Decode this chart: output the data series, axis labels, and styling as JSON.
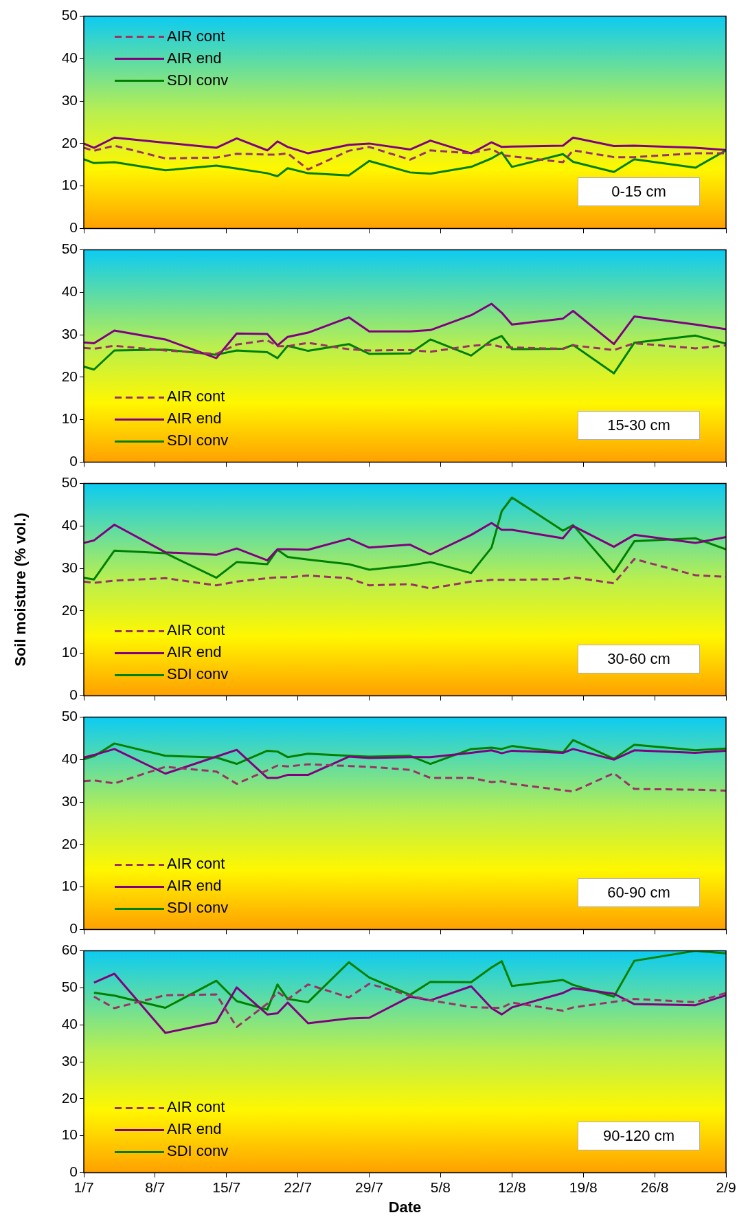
{
  "chart_data": [
    {
      "type": "line",
      "x": [
        "--07-01",
        "--07-02",
        "--07-04",
        "--07-09",
        "--07-14",
        "--07-16",
        "--07-19",
        "--07-20",
        "--07-21",
        "--07-23",
        "--07-27",
        "--07-29",
        "--08-02",
        "--08-04",
        "--08-08",
        "--08-10",
        "--08-11",
        "--08-12",
        "--08-17",
        "--08-18",
        "--08-22",
        "--08-24",
        "--08-30",
        "--09-02"
      ],
      "series": [
        {
          "name": "AIR cont",
          "color": "#993366",
          "line_style": "dashed",
          "values": [
            19.0,
            18.3,
            19.5,
            16.5,
            16.7,
            17.6,
            17.4,
            17.4,
            17.7,
            13.9,
            18.3,
            19.2,
            16.2,
            18.4,
            17.7,
            18.8,
            17.3,
            17.0,
            15.6,
            18.4,
            16.8,
            16.8,
            17.7,
            17.7
          ]
        },
        {
          "name": "AIR end",
          "color": "#800080",
          "line_style": "solid",
          "values": [
            20.0,
            19.0,
            21.4,
            20.2,
            19.0,
            21.2,
            18.4,
            20.5,
            19.2,
            17.7,
            19.7,
            20.0,
            18.6,
            20.7,
            17.7,
            20.3,
            19.2,
            19.3,
            19.5,
            21.4,
            19.4,
            19.5,
            19.0,
            18.5
          ]
        },
        {
          "name": "SDI conv",
          "color": "#008000",
          "line_style": "solid",
          "values": [
            16.3,
            15.4,
            15.6,
            13.7,
            14.8,
            14.1,
            13.0,
            12.3,
            14.2,
            13.0,
            12.5,
            15.9,
            13.2,
            12.9,
            14.5,
            16.5,
            17.9,
            14.5,
            17.5,
            15.7,
            13.3,
            16.3,
            14.3,
            18.4
          ]
        }
      ],
      "xlim": [
        "--07-01",
        "--09-02"
      ],
      "xticks": [
        {
          "value": "--07-01",
          "label": null
        },
        {
          "value": "--07-08",
          "label": null
        },
        {
          "value": "--07-15",
          "label": null
        },
        {
          "value": "--07-22",
          "label": null
        },
        {
          "value": "--07-29",
          "label": null
        },
        {
          "value": "--08-05",
          "label": null
        },
        {
          "value": "--08-12",
          "label": null
        },
        {
          "value": "--08-19",
          "label": null
        },
        {
          "value": "--08-26",
          "label": null
        },
        {
          "value": "--09-02",
          "label": null
        }
      ],
      "ylim": [
        0,
        50
      ],
      "yticks": [
        0,
        10,
        20,
        30,
        40,
        50
      ],
      "tick_labels": "y",
      "legend": "top left",
      "annotations": [
        "0-15 cm"
      ]
    },
    {
      "type": "line",
      "x": [
        "--07-01",
        "--07-02",
        "--07-04",
        "--07-09",
        "--07-14",
        "--07-16",
        "--07-19",
        "--07-20",
        "--07-21",
        "--07-23",
        "--07-27",
        "--07-29",
        "--08-02",
        "--08-04",
        "--08-08",
        "--08-10",
        "--08-11",
        "--08-12",
        "--08-17",
        "--08-18",
        "--08-22",
        "--08-24",
        "--08-30",
        "--09-02"
      ],
      "series": [
        {
          "name": "AIR cont",
          "color": "#993366",
          "line_style": "dashed",
          "values": [
            26.9,
            26.7,
            27.4,
            26.3,
            25.5,
            27.7,
            28.7,
            27.3,
            27.3,
            28.1,
            26.6,
            26.3,
            26.4,
            26.0,
            27.4,
            27.7,
            27.1,
            27.0,
            26.7,
            27.5,
            26.4,
            28.0,
            26.8,
            27.5
          ]
        },
        {
          "name": "AIR end",
          "color": "#800080",
          "line_style": "solid",
          "values": [
            28.2,
            28.0,
            31.0,
            28.9,
            24.5,
            30.3,
            30.2,
            27.5,
            29.5,
            30.5,
            34.1,
            30.8,
            30.8,
            31.1,
            34.6,
            37.3,
            35.2,
            32.4,
            33.8,
            35.6,
            27.8,
            34.3,
            32.4,
            31.3
          ]
        },
        {
          "name": "SDI conv",
          "color": "#008000",
          "line_style": "solid",
          "values": [
            22.5,
            21.8,
            26.3,
            26.5,
            25.3,
            26.3,
            25.9,
            24.5,
            27.4,
            26.2,
            27.8,
            25.5,
            25.6,
            28.9,
            25.1,
            28.7,
            29.7,
            26.6,
            26.7,
            27.6,
            20.9,
            28.1,
            29.8,
            27.9
          ]
        }
      ],
      "xlim": [
        "--07-01",
        "--09-02"
      ],
      "xticks": [
        {
          "value": "--07-01",
          "label": null
        },
        {
          "value": "--07-08",
          "label": null
        },
        {
          "value": "--07-15",
          "label": null
        },
        {
          "value": "--07-22",
          "label": null
        },
        {
          "value": "--07-29",
          "label": null
        },
        {
          "value": "--08-05",
          "label": null
        },
        {
          "value": "--08-12",
          "label": null
        },
        {
          "value": "--08-19",
          "label": null
        },
        {
          "value": "--08-26",
          "label": null
        },
        {
          "value": "--09-02",
          "label": null
        }
      ],
      "ylim": [
        0,
        50
      ],
      "yticks": [
        0,
        10,
        20,
        30,
        40,
        50
      ],
      "tick_labels": "y",
      "legend": "bottom left",
      "annotations": [
        "15-30 cm"
      ]
    },
    {
      "type": "line",
      "x": [
        "--07-01",
        "--07-02",
        "--07-04",
        "--07-09",
        "--07-14",
        "--07-16",
        "--07-19",
        "--07-20",
        "--07-21",
        "--07-23",
        "--07-27",
        "--07-29",
        "--08-02",
        "--08-04",
        "--08-08",
        "--08-10",
        "--08-11",
        "--08-12",
        "--08-17",
        "--08-18",
        "--08-22",
        "--08-24",
        "--08-30",
        "--09-02"
      ],
      "series": [
        {
          "name": "AIR cont",
          "color": "#993366",
          "line_style": "dashed",
          "values": [
            26.9,
            26.6,
            27.1,
            27.7,
            26.0,
            26.9,
            27.7,
            27.9,
            27.9,
            28.3,
            27.7,
            26.0,
            26.3,
            25.3,
            26.9,
            27.3,
            27.3,
            27.3,
            27.5,
            27.9,
            26.5,
            32.2,
            28.4,
            28.0
          ]
        },
        {
          "name": "AIR end",
          "color": "#800080",
          "line_style": "solid",
          "values": [
            36.0,
            36.6,
            40.3,
            33.8,
            33.2,
            34.7,
            31.9,
            34.5,
            34.5,
            34.4,
            37.0,
            34.9,
            35.6,
            33.3,
            37.9,
            40.7,
            39.1,
            39.1,
            37.1,
            40.0,
            35.1,
            37.9,
            36.0,
            37.4
          ]
        },
        {
          "name": "SDI conv",
          "color": "#008000",
          "line_style": "solid",
          "values": [
            27.8,
            27.4,
            34.2,
            33.6,
            27.8,
            31.5,
            31.0,
            34.4,
            32.7,
            32.1,
            31.0,
            29.7,
            30.7,
            31.5,
            28.9,
            34.9,
            43.5,
            46.7,
            38.9,
            40.2,
            29.1,
            36.4,
            37.1,
            34.5
          ]
        }
      ],
      "xlim": [
        "--07-01",
        "--09-02"
      ],
      "xticks": [
        {
          "value": "--07-01",
          "label": null
        },
        {
          "value": "--07-08",
          "label": null
        },
        {
          "value": "--07-15",
          "label": null
        },
        {
          "value": "--07-22",
          "label": null
        },
        {
          "value": "--07-29",
          "label": null
        },
        {
          "value": "--08-05",
          "label": null
        },
        {
          "value": "--08-12",
          "label": null
        },
        {
          "value": "--08-19",
          "label": null
        },
        {
          "value": "--08-26",
          "label": null
        },
        {
          "value": "--09-02",
          "label": null
        }
      ],
      "ylim": [
        0,
        50
      ],
      "yticks": [
        0,
        10,
        20,
        30,
        40,
        50
      ],
      "ylabel": "Soil moisture (% vol.)",
      "tick_labels": "y",
      "legend": "bottom left",
      "annotations": [
        "30-60 cm"
      ]
    },
    {
      "type": "line",
      "x": [
        "--07-01",
        "--07-02",
        "--07-04",
        "--07-09",
        "--07-14",
        "--07-16",
        "--07-19",
        "--07-20",
        "--07-21",
        "--07-23",
        "--07-27",
        "--07-29",
        "--08-02",
        "--08-04",
        "--08-08",
        "--08-10",
        "--08-11",
        "--08-12",
        "--08-17",
        "--08-18",
        "--08-22",
        "--08-24",
        "--08-30",
        "--09-02"
      ],
      "series": [
        {
          "name": "AIR cont",
          "color": "#993366",
          "line_style": "dashed",
          "values": [
            34.9,
            35.1,
            34.4,
            38.3,
            37.2,
            34.3,
            37.5,
            38.6,
            38.4,
            38.9,
            38.5,
            38.3,
            37.6,
            35.7,
            35.7,
            34.7,
            34.9,
            34.3,
            32.8,
            32.5,
            36.8,
            33.1,
            32.9,
            32.7
          ]
        },
        {
          "name": "AIR end",
          "color": "#800080",
          "line_style": "solid",
          "values": [
            40.5,
            41.1,
            42.5,
            36.7,
            40.7,
            42.3,
            35.7,
            35.7,
            36.4,
            36.4,
            40.7,
            40.4,
            40.6,
            40.6,
            41.6,
            42.2,
            41.5,
            42.1,
            41.6,
            42.5,
            40.0,
            42.2,
            41.6,
            42.1
          ]
        },
        {
          "name": "SDI conv",
          "color": "#008000",
          "line_style": "solid",
          "values": [
            40.1,
            40.8,
            43.8,
            40.9,
            40.5,
            39.0,
            42.1,
            41.9,
            40.6,
            41.4,
            40.9,
            40.7,
            40.9,
            39.0,
            42.5,
            42.8,
            42.5,
            43.2,
            41.7,
            44.6,
            40.2,
            43.5,
            42.2,
            42.6
          ]
        }
      ],
      "xlim": [
        "--07-01",
        "--09-02"
      ],
      "xticks": [
        {
          "value": "--07-01",
          "label": null
        },
        {
          "value": "--07-08",
          "label": null
        },
        {
          "value": "--07-15",
          "label": null
        },
        {
          "value": "--07-22",
          "label": null
        },
        {
          "value": "--07-29",
          "label": null
        },
        {
          "value": "--08-05",
          "label": null
        },
        {
          "value": "--08-12",
          "label": null
        },
        {
          "value": "--08-19",
          "label": null
        },
        {
          "value": "--08-26",
          "label": null
        },
        {
          "value": "--09-02",
          "label": null
        }
      ],
      "ylim": [
        0,
        50
      ],
      "yticks": [
        0,
        10,
        20,
        30,
        40,
        50
      ],
      "tick_labels": "y",
      "legend": "bottom left",
      "annotations": [
        "60-90 cm"
      ]
    },
    {
      "type": "line",
      "x": [
        "--07-02",
        "--07-04",
        "--07-09",
        "--07-14",
        "--07-16",
        "--07-19",
        "--07-20",
        "--07-21",
        "--07-23",
        "--07-27",
        "--07-29",
        "--08-02",
        "--08-04",
        "--08-08",
        "--08-10",
        "--08-11",
        "--08-12",
        "--08-17",
        "--08-18",
        "--08-22",
        "--08-24",
        "--08-30",
        "--09-02"
      ],
      "series": [
        {
          "name": "AIR cont",
          "color": "#993366",
          "line_style": "dashed",
          "values": [
            47.6,
            44.5,
            48.0,
            48.2,
            39.4,
            45.7,
            48.9,
            46.9,
            50.9,
            47.4,
            51.1,
            47.9,
            46.6,
            44.8,
            44.6,
            44.6,
            46.0,
            43.8,
            44.7,
            46.2,
            47.0,
            46.1,
            48.6
          ]
        },
        {
          "name": "AIR end",
          "color": "#800080",
          "line_style": "solid",
          "values": [
            51.4,
            53.8,
            37.8,
            40.7,
            50.1,
            42.8,
            43.1,
            46.0,
            40.4,
            41.7,
            41.9,
            47.6,
            46.6,
            50.4,
            44.5,
            42.8,
            44.7,
            48.6,
            49.9,
            48.4,
            45.6,
            45.3,
            48.0
          ]
        },
        {
          "name": "SDI conv",
          "color": "#008000",
          "line_style": "solid",
          "values": [
            48.7,
            47.9,
            44.6,
            51.9,
            46.4,
            44.1,
            50.9,
            47.0,
            46.1,
            56.9,
            52.8,
            48.1,
            51.6,
            51.5,
            55.5,
            57.2,
            50.5,
            52.1,
            50.8,
            47.6,
            57.3,
            60.0,
            59.3
          ]
        }
      ],
      "xlim": [
        "--07-01",
        "--09-02"
      ],
      "xticks": [
        {
          "value": "--07-01",
          "label": "1/7"
        },
        {
          "value": "--07-08",
          "label": "8/7"
        },
        {
          "value": "--07-15",
          "label": "15/7"
        },
        {
          "value": "--07-22",
          "label": "22/7"
        },
        {
          "value": "--07-29",
          "label": "29/7"
        },
        {
          "value": "--08-05",
          "label": "5/8"
        },
        {
          "value": "--08-12",
          "label": "12/8"
        },
        {
          "value": "--08-19",
          "label": "19/8"
        },
        {
          "value": "--08-26",
          "label": "26/8"
        },
        {
          "value": "--09-02",
          "label": "2/9"
        }
      ],
      "ylim": [
        0,
        60
      ],
      "yticks": [
        0,
        10,
        20,
        30,
        40,
        50,
        60
      ],
      "xlabel": "Date",
      "legend": "bottom left",
      "annotations": [
        "90-120 cm"
      ]
    }
  ]
}
